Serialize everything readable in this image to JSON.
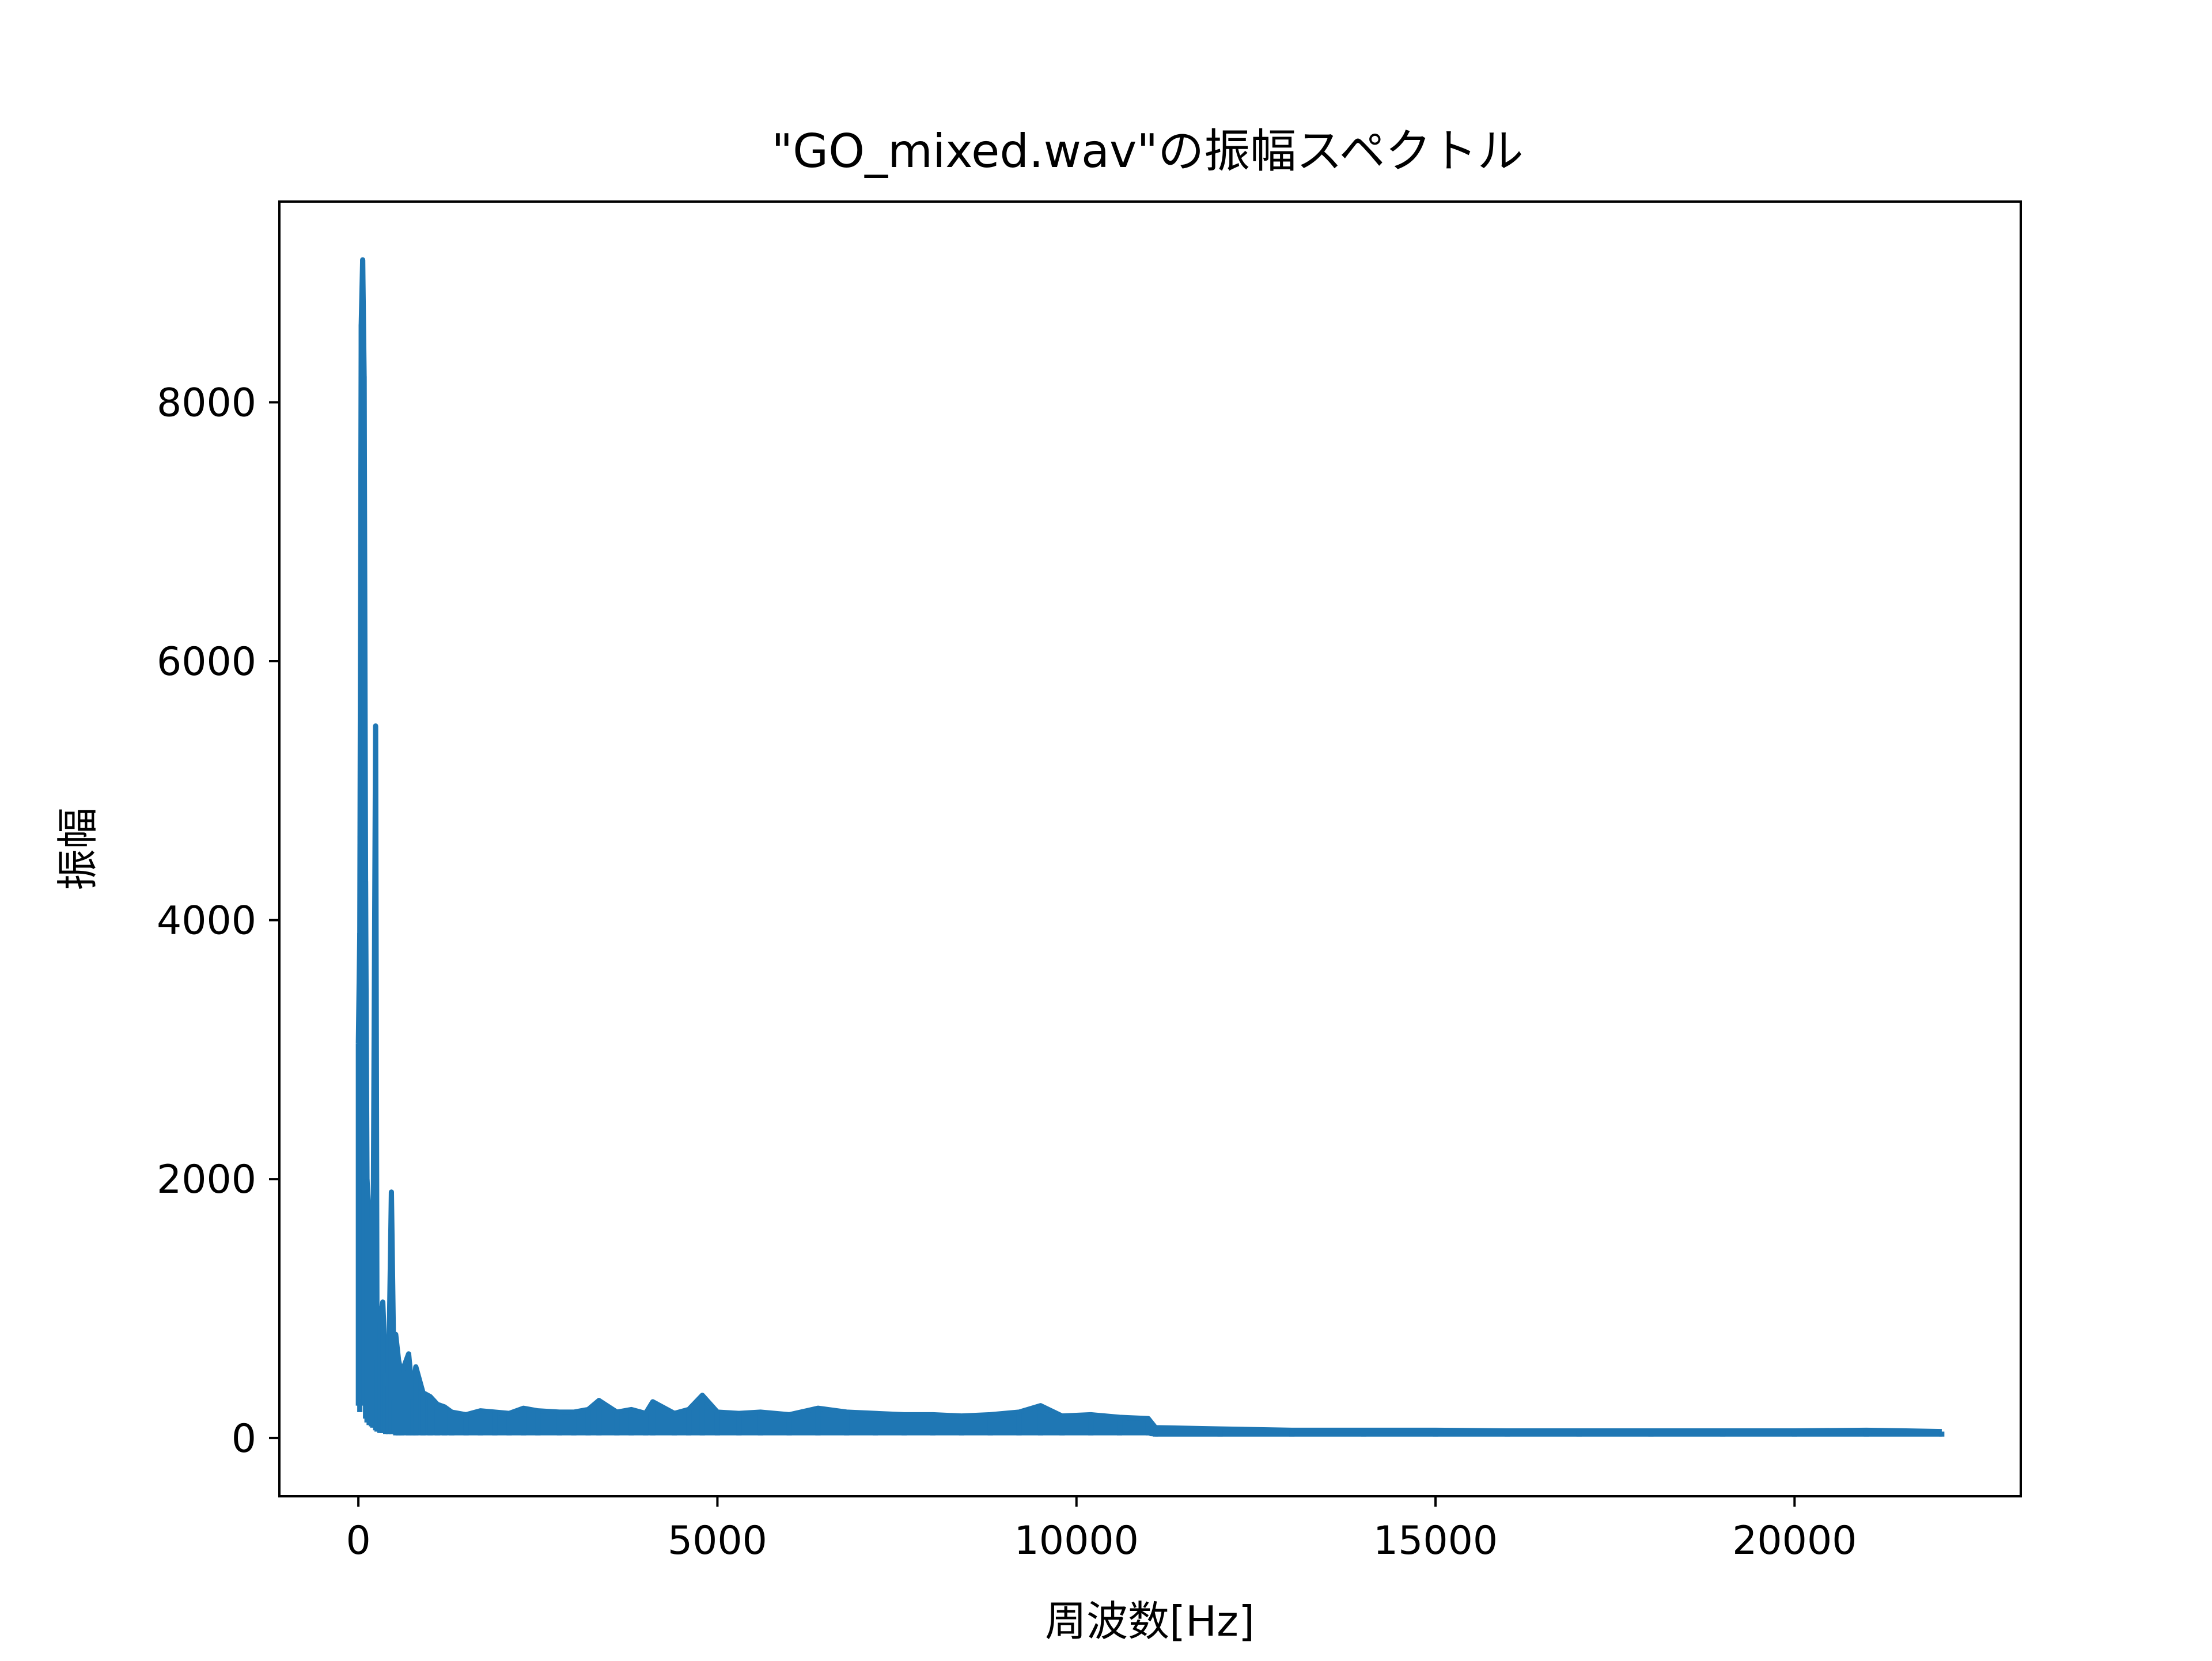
{
  "chart_data": {
    "type": "line",
    "title": "\"GO_mixed.wav\"の振幅スペクトル",
    "xlabel": "周波数[Hz]",
    "ylabel": "振幅",
    "xlim": [
      -1100,
      23150
    ],
    "ylim": [
      -450,
      9550
    ],
    "xticks": [
      0,
      5000,
      10000,
      15000,
      20000
    ],
    "yticks": [
      0,
      2000,
      4000,
      6000,
      8000
    ],
    "grid": false,
    "series": [
      {
        "color": "#1f77b4",
        "x": [
          0,
          20,
          40,
          60,
          80,
          100,
          120,
          150,
          180,
          200,
          240,
          260,
          300,
          340,
          380,
          420,
          460,
          500,
          520,
          560,
          600,
          700,
          760,
          800,
          900,
          1000,
          1100,
          1200,
          1300,
          1500,
          1700,
          1900,
          2100,
          2300,
          2500,
          2800,
          3000,
          3200,
          3350,
          3600,
          3800,
          4000,
          4100,
          4400,
          4600,
          4790,
          5000,
          5300,
          5600,
          6000,
          6400,
          6800,
          7200,
          7600,
          8000,
          8400,
          8800,
          9200,
          9500,
          9800,
          10200,
          10600,
          11000,
          11100,
          12000,
          13000,
          14000,
          15000,
          16000,
          17000,
          18000,
          19000,
          20000,
          21000,
          22050
        ],
        "y": [
          3050,
          3900,
          8600,
          9100,
          8200,
          4300,
          2000,
          1700,
          1200,
          800,
          5500,
          600,
          900,
          1050,
          500,
          400,
          1900,
          300,
          800,
          600,
          500,
          650,
          300,
          550,
          350,
          320,
          260,
          240,
          200,
          180,
          210,
          200,
          190,
          230,
          210,
          200,
          200,
          220,
          290,
          200,
          220,
          190,
          280,
          190,
          220,
          330,
          200,
          190,
          200,
          180,
          230,
          200,
          190,
          180,
          180,
          170,
          180,
          200,
          250,
          170,
          180,
          160,
          150,
          80,
          70,
          60,
          60,
          60,
          55,
          55,
          55,
          55,
          55,
          60,
          50
        ],
        "floor": [
          250,
          200,
          300,
          350,
          250,
          150,
          120,
          100,
          90,
          80,
          60,
          50,
          40,
          40,
          30,
          30,
          30,
          30,
          20,
          20,
          20,
          20,
          20,
          20,
          20,
          20,
          20,
          20,
          20,
          20,
          20,
          20,
          20,
          20,
          20,
          20,
          20,
          20,
          20,
          20,
          20,
          20,
          20,
          20,
          20,
          20,
          20,
          20,
          20,
          20,
          20,
          20,
          20,
          20,
          20,
          20,
          20,
          20,
          20,
          20,
          20,
          20,
          20,
          10,
          10,
          10,
          10,
          10,
          10,
          10,
          10,
          10,
          10,
          10,
          10
        ]
      }
    ]
  }
}
